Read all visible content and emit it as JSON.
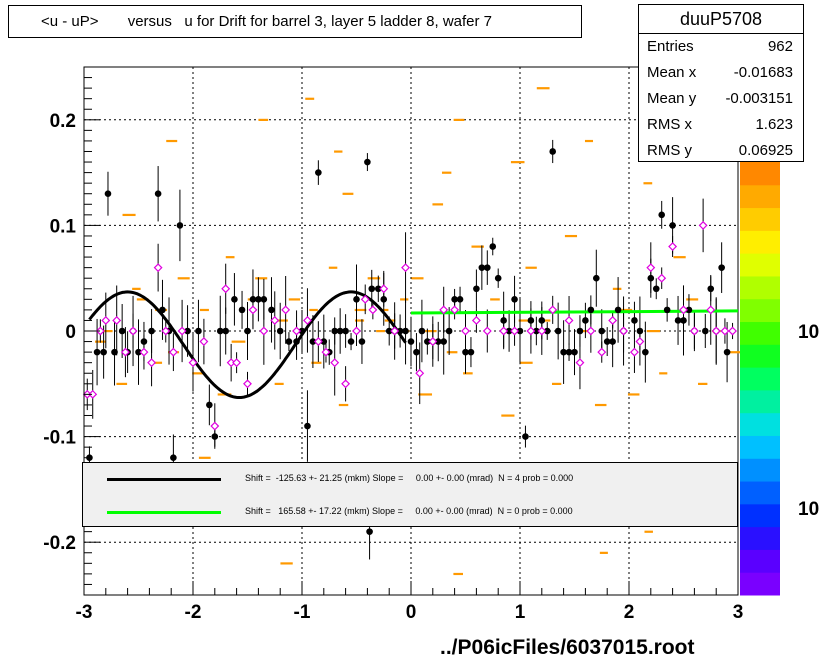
{
  "title": "<u - uP>       versus   u for Drift for barrel 3, layer 5 ladder 8, wafer 7",
  "stats": {
    "name": "duuP5708",
    "rows": [
      {
        "key": "Entries",
        "value": "962"
      },
      {
        "key": "Mean x",
        "value": "-0.01683"
      },
      {
        "key": "Mean y",
        "value": "-0.003151"
      },
      {
        "key": "RMS x",
        "value": "1.623"
      },
      {
        "key": "RMS y",
        "value": "0.06925"
      }
    ]
  },
  "legend": [
    {
      "color": "#000000",
      "text": "Shift =  -125.63 +- 21.25 (mkm) Slope =     0.00 +- 0.00 (mrad)  N = 4 prob = 0.000"
    },
    {
      "color": "#00ff00",
      "text": "Shift =   165.58 +- 17.22 (mkm) Slope =     0.00 +- 0.00 (mrad)  N = 0 prob = 0.000"
    }
  ],
  "palette_labels": [
    "10",
    "10"
  ],
  "footer": "../P06icFiles/6037015.root",
  "chart_data": {
    "type": "scatter",
    "title": "<u - uP>       versus   u for Drift for barrel 3, layer 5 ladder 8, wafer 7",
    "xlim": [
      -3,
      3
    ],
    "ylim": [
      -0.25,
      0.25
    ],
    "x_ticks": [
      "-3",
      "-2",
      "-1",
      "0",
      "1",
      "2",
      "3"
    ],
    "y_ticks": [
      "-0.2",
      "-0.1",
      "0",
      "0.1",
      "0.2"
    ],
    "grid": true,
    "series": [
      {
        "marker": "filled-circle",
        "color": "#000000",
        "points": [
          [
            -2.95,
            -0.12
          ],
          [
            -2.88,
            -0.02
          ],
          [
            -2.82,
            -0.02
          ],
          [
            -2.78,
            0.13
          ],
          [
            -2.72,
            -0.02
          ],
          [
            -2.65,
            0.0
          ],
          [
            -2.6,
            -0.02
          ],
          [
            -2.55,
            0.0
          ],
          [
            -2.5,
            -0.02
          ],
          [
            -2.45,
            -0.01
          ],
          [
            -2.38,
            0.0
          ],
          [
            -2.32,
            0.13
          ],
          [
            -2.28,
            0.02
          ],
          [
            -2.22,
            0.0
          ],
          [
            -2.18,
            -0.12
          ],
          [
            -2.12,
            0.1
          ],
          [
            -2.05,
            0.0
          ],
          [
            -1.95,
            0.0
          ],
          [
            -1.85,
            -0.07
          ],
          [
            -1.8,
            -0.1
          ],
          [
            -1.75,
            0.0
          ],
          [
            -1.7,
            0.0
          ],
          [
            -1.62,
            0.03
          ],
          [
            -1.55,
            0.02
          ],
          [
            -1.5,
            0.0
          ],
          [
            -1.45,
            0.03
          ],
          [
            -1.4,
            0.03
          ],
          [
            -1.35,
            0.03
          ],
          [
            -1.28,
            0.02
          ],
          [
            -1.2,
            0.0
          ],
          [
            -1.12,
            -0.01
          ],
          [
            -1.05,
            -0.01
          ],
          [
            -1.0,
            0.0
          ],
          [
            -0.95,
            -0.09
          ],
          [
            -0.9,
            -0.01
          ],
          [
            -0.85,
            0.15
          ],
          [
            -0.8,
            -0.01
          ],
          [
            -0.75,
            -0.02
          ],
          [
            -0.7,
            0.0
          ],
          [
            -0.65,
            0.0
          ],
          [
            -0.6,
            0.0
          ],
          [
            -0.55,
            -0.01
          ],
          [
            -0.5,
            0.03
          ],
          [
            -0.45,
            -0.01
          ],
          [
            -0.4,
            0.16
          ],
          [
            -0.36,
            0.04
          ],
          [
            -0.3,
            0.04
          ],
          [
            -0.25,
            0.03
          ],
          [
            -0.2,
            0.0
          ],
          [
            -0.15,
            0.0
          ],
          [
            -0.1,
            0.0
          ],
          [
            -0.05,
            0.0
          ],
          [
            0.0,
            -0.01
          ],
          [
            0.05,
            -0.02
          ],
          [
            0.1,
            0.0
          ],
          [
            0.15,
            -0.01
          ],
          [
            0.2,
            -0.01
          ],
          [
            0.25,
            -0.01
          ],
          [
            0.3,
            -0.01
          ],
          [
            0.35,
            0.0
          ],
          [
            0.4,
            0.03
          ],
          [
            0.45,
            0.03
          ],
          [
            0.5,
            -0.02
          ],
          [
            0.55,
            -0.02
          ],
          [
            0.6,
            0.04
          ],
          [
            0.65,
            0.06
          ],
          [
            0.7,
            0.06
          ],
          [
            0.75,
            0.08
          ],
          [
            0.8,
            0.05
          ],
          [
            0.85,
            0.01
          ],
          [
            0.9,
            0.0
          ],
          [
            0.95,
            0.03
          ],
          [
            1.0,
            0.0
          ],
          [
            1.05,
            -0.1
          ],
          [
            1.1,
            0.01
          ],
          [
            1.15,
            0.0
          ],
          [
            1.2,
            0.01
          ],
          [
            1.25,
            0.0
          ],
          [
            1.3,
            0.17
          ],
          [
            1.35,
            0.0
          ],
          [
            1.4,
            -0.02
          ],
          [
            1.45,
            -0.02
          ],
          [
            1.5,
            -0.02
          ],
          [
            1.55,
            0.0
          ],
          [
            1.6,
            0.01
          ],
          [
            1.65,
            0.02
          ],
          [
            1.7,
            0.05
          ],
          [
            1.75,
            0.0
          ],
          [
            1.8,
            -0.01
          ],
          [
            1.85,
            -0.01
          ],
          [
            1.9,
            0.02
          ],
          [
            1.95,
            0.0
          ],
          [
            2.05,
            0.01
          ],
          [
            2.1,
            0.0
          ],
          [
            2.15,
            -0.02
          ],
          [
            2.2,
            0.05
          ],
          [
            2.25,
            0.04
          ],
          [
            2.3,
            0.11
          ],
          [
            2.35,
            0.02
          ],
          [
            2.4,
            0.1
          ],
          [
            2.45,
            0.01
          ],
          [
            2.5,
            0.01
          ],
          [
            2.55,
            0.02
          ],
          [
            2.6,
            0.0
          ],
          [
            2.7,
            0.0
          ],
          [
            2.75,
            0.04
          ],
          [
            2.8,
            0.0
          ],
          [
            2.85,
            0.06
          ],
          [
            2.9,
            -0.02
          ],
          [
            -0.38,
            -0.19
          ]
        ]
      },
      {
        "marker": "open-diamond",
        "color": "#e000e0",
        "points": [
          [
            -2.97,
            -0.06
          ],
          [
            -2.92,
            -0.06
          ],
          [
            -2.85,
            0.0
          ],
          [
            -2.8,
            0.01
          ],
          [
            -2.7,
            0.01
          ],
          [
            -2.62,
            -0.02
          ],
          [
            -2.55,
            0.0
          ],
          [
            -2.45,
            -0.02
          ],
          [
            -2.38,
            -0.03
          ],
          [
            -2.32,
            0.06
          ],
          [
            -2.25,
            0.0
          ],
          [
            -2.18,
            -0.02
          ],
          [
            -2.1,
            0.0
          ],
          [
            -2.0,
            -0.03
          ],
          [
            -1.9,
            -0.01
          ],
          [
            -1.8,
            -0.09
          ],
          [
            -1.7,
            0.04
          ],
          [
            -1.65,
            -0.03
          ],
          [
            -1.6,
            -0.03
          ],
          [
            -1.5,
            -0.05
          ],
          [
            -1.45,
            0.02
          ],
          [
            -1.35,
            0.0
          ],
          [
            -1.25,
            0.01
          ],
          [
            -1.15,
            0.02
          ],
          [
            -1.05,
            0.0
          ],
          [
            -0.95,
            0.01
          ],
          [
            -0.85,
            -0.01
          ],
          [
            -0.78,
            -0.02
          ],
          [
            -0.7,
            -0.03
          ],
          [
            -0.6,
            -0.05
          ],
          [
            -0.5,
            0.0
          ],
          [
            -0.42,
            0.03
          ],
          [
            -0.35,
            0.02
          ],
          [
            -0.25,
            0.04
          ],
          [
            -0.15,
            0.0
          ],
          [
            -0.05,
            0.06
          ],
          [
            0.08,
            -0.04
          ],
          [
            0.2,
            -0.01
          ],
          [
            0.3,
            0.02
          ],
          [
            0.4,
            0.02
          ],
          [
            0.5,
            0.0
          ],
          [
            0.6,
            0.01
          ],
          [
            0.7,
            0.0
          ],
          [
            0.85,
            0.0
          ],
          [
            0.95,
            0.0
          ],
          [
            1.1,
            0.0
          ],
          [
            1.2,
            0.0
          ],
          [
            1.3,
            0.02
          ],
          [
            1.45,
            0.01
          ],
          [
            1.55,
            -0.03
          ],
          [
            1.65,
            0.0
          ],
          [
            1.75,
            -0.02
          ],
          [
            1.85,
            0.01
          ],
          [
            1.95,
            0.0
          ],
          [
            2.05,
            -0.02
          ],
          [
            2.1,
            -0.01
          ],
          [
            2.2,
            0.06
          ],
          [
            2.3,
            0.05
          ],
          [
            2.4,
            0.08
          ],
          [
            2.5,
            0.02
          ],
          [
            2.6,
            0.0
          ],
          [
            2.68,
            0.1
          ],
          [
            2.75,
            0.02
          ],
          [
            2.8,
            0.0
          ],
          [
            2.88,
            0.0
          ],
          [
            2.95,
            0.0
          ]
        ]
      }
    ],
    "orange_bins": [
      [
        -2.9,
        -0.01
      ],
      [
        -2.8,
        0.0
      ],
      [
        -2.7,
        -0.05
      ],
      [
        -2.6,
        0.04
      ],
      [
        -2.5,
        0.03
      ],
      [
        -2.4,
        -0.03
      ],
      [
        -2.3,
        0.02
      ],
      [
        -2.2,
        -0.02
      ],
      [
        -2.1,
        0.05
      ],
      [
        -2.0,
        -0.04
      ],
      [
        -1.9,
        0.02
      ],
      [
        -1.8,
        -0.06
      ],
      [
        -1.7,
        0.07
      ],
      [
        -1.6,
        -0.01
      ],
      [
        -1.5,
        0.03
      ],
      [
        -1.4,
        0.05
      ],
      [
        -1.3,
        -0.05
      ],
      [
        -1.2,
        0.01
      ],
      [
        -1.1,
        0.03
      ],
      [
        -1.0,
        0.22
      ],
      [
        -0.9,
        -0.03
      ],
      [
        -0.8,
        0.06
      ],
      [
        -0.7,
        -0.07
      ],
      [
        -0.6,
        0.13
      ],
      [
        -0.5,
        0.02
      ],
      [
        -0.4,
        0.05
      ],
      [
        -0.3,
        0.0
      ],
      [
        -0.2,
        0.01
      ],
      [
        -0.1,
        0.03
      ],
      [
        0.0,
        0.05
      ],
      [
        0.1,
        -0.06
      ],
      [
        0.2,
        0.12
      ],
      [
        0.3,
        -0.02
      ],
      [
        0.4,
        0.2
      ],
      [
        0.5,
        -0.04
      ],
      [
        0.6,
        0.08
      ],
      [
        0.7,
        0.03
      ],
      [
        0.8,
        -0.08
      ],
      [
        0.9,
        0.16
      ],
      [
        1.0,
        -0.03
      ],
      [
        1.1,
        0.06
      ],
      [
        1.2,
        0.01
      ],
      [
        1.3,
        -0.05
      ],
      [
        1.4,
        0.09
      ],
      [
        1.5,
        0.0
      ],
      [
        1.6,
        0.18
      ],
      [
        1.7,
        -0.07
      ],
      [
        1.8,
        0.04
      ],
      [
        1.9,
        0.02
      ],
      [
        2.0,
        -0.06
      ],
      [
        2.1,
        0.14
      ],
      [
        2.2,
        0.0
      ],
      [
        2.3,
        -0.04
      ],
      [
        2.4,
        0.07
      ],
      [
        2.5,
        0.03
      ],
      [
        2.6,
        -0.05
      ],
      [
        2.7,
        0.21
      ],
      [
        2.8,
        0.0
      ],
      [
        2.9,
        -0.02
      ],
      [
        -2.6,
        0.11
      ],
      [
        -2.2,
        0.18
      ],
      [
        -1.4,
        0.2
      ],
      [
        -0.7,
        0.17
      ],
      [
        0.3,
        0.15
      ],
      [
        1.2,
        0.23
      ],
      [
        2.3,
        0.17
      ],
      [
        -1.9,
        -0.12
      ],
      [
        -0.3,
        -0.18
      ],
      [
        0.8,
        -0.14
      ],
      [
        1.7,
        -0.21
      ],
      [
        2.6,
        -0.13
      ],
      [
        -2.7,
        -0.15
      ],
      [
        -1.2,
        -0.22
      ],
      [
        0.4,
        -0.23
      ],
      [
        2.1,
        -0.19
      ],
      [
        -0.9,
        0.02
      ],
      [
        -0.5,
        0.01
      ],
      [
        -0.3,
        0.02
      ],
      [
        -0.1,
        0.0
      ],
      [
        0.1,
        0.0
      ],
      [
        1.0,
        0.01
      ]
    ],
    "fit_black": {
      "x_range": [
        -2.95,
        -0.05
      ],
      "amplitude": 0.05,
      "period": 2.05,
      "phase_x": -2.6
    },
    "fit_green": {
      "x_range": [
        0.0,
        3.0
      ],
      "y_start": 0.017,
      "y_end": 0.019
    }
  }
}
